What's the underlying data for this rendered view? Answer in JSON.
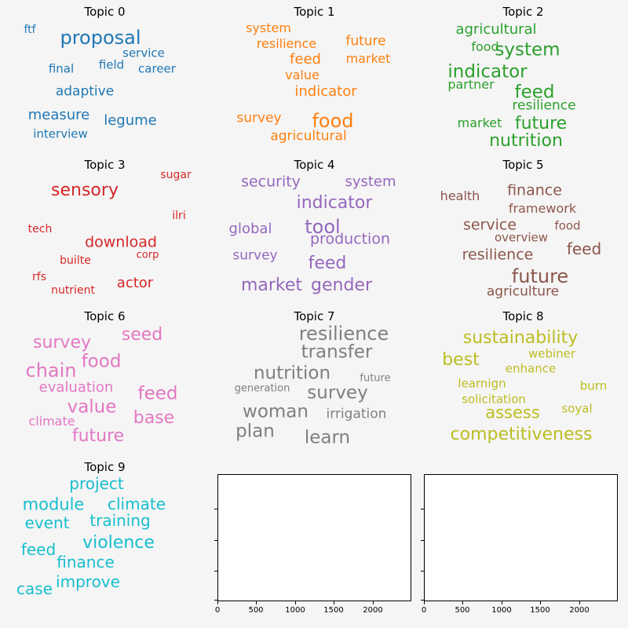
{
  "chart_data": {
    "type": "wordcloud",
    "topics": [
      {
        "title": "Topic 0",
        "color": "#1f77b4",
        "words": [
          "proposal",
          "ftf",
          "service",
          "final",
          "field",
          "career",
          "adaptive",
          "measure",
          "legume",
          "interview"
        ]
      },
      {
        "title": "Topic 1",
        "color": "#ff7f0e",
        "words": [
          "system",
          "resilience",
          "future",
          "feed",
          "market",
          "value",
          "indicator",
          "survey",
          "food",
          "agricultural"
        ]
      },
      {
        "title": "Topic 2",
        "color": "#2ca02c",
        "words": [
          "agricultural",
          "food",
          "system",
          "indicator",
          "partner",
          "feed",
          "resilience",
          "market",
          "future",
          "nutrition"
        ]
      },
      {
        "title": "Topic 3",
        "color": "#d62728",
        "words": [
          "sugar",
          "sensory",
          "ilri",
          "tech",
          "download",
          "corp",
          "builte",
          "rfs",
          "actor",
          "nutrient"
        ]
      },
      {
        "title": "Topic 4",
        "color": "#9467bd",
        "words": [
          "security",
          "system",
          "indicator",
          "global",
          "tool",
          "production",
          "survey",
          "feed",
          "market",
          "gender"
        ]
      },
      {
        "title": "Topic 5",
        "color": "#8c564b",
        "words": [
          "health",
          "finance",
          "framework",
          "service",
          "food",
          "overview",
          "resilience",
          "feed",
          "future",
          "agriculture"
        ]
      },
      {
        "title": "Topic 6",
        "color": "#e377c2",
        "words": [
          "seed",
          "survey",
          "food",
          "chain",
          "evaluation",
          "feed",
          "value",
          "climate",
          "base",
          "future"
        ]
      },
      {
        "title": "Topic 7",
        "color": "#7f7f7f",
        "words": [
          "resilience",
          "transfer",
          "nutrition",
          "future",
          "generation",
          "survey",
          "woman",
          "irrigation",
          "plan",
          "learn"
        ]
      },
      {
        "title": "Topic 8",
        "color": "#bcbd22",
        "words": [
          "sustainability",
          "best",
          "webiner",
          "enhance",
          "learnign",
          "burn",
          "solicitation",
          "assess",
          "soyal",
          "competitiveness"
        ]
      },
      {
        "title": "Topic 9",
        "color": "#17becf",
        "words": [
          "project",
          "module",
          "climate",
          "event",
          "training",
          "violence",
          "feed",
          "finance",
          "improve",
          "case"
        ]
      }
    ],
    "empty_axes": [
      {
        "xticks": [
          "0",
          "500",
          "1000",
          "1500",
          "2000"
        ],
        "xlim": [
          0,
          2500
        ]
      },
      {
        "xticks": [
          "0",
          "500",
          "1000",
          "1500",
          "2000"
        ],
        "xlim": [
          0,
          2500
        ]
      }
    ]
  }
}
